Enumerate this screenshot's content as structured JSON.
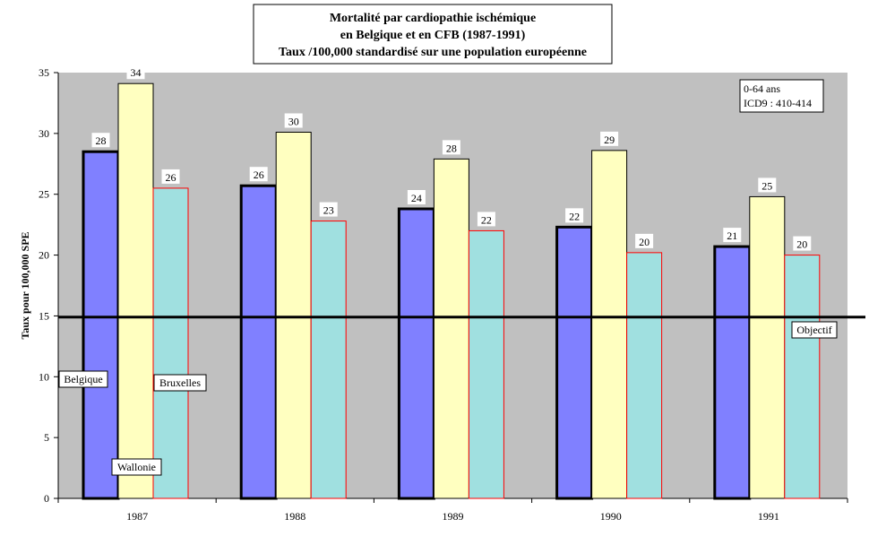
{
  "chart_data": {
    "type": "bar",
    "title_lines": [
      "Mortalité par cardiopathie ischémique",
      "en Belgique et en CFB (1987-1991)",
      "Taux /100,000 standardisé sur une population européenne"
    ],
    "ylabel": "Taux pour 100,000 SPE",
    "xlabel": "",
    "ylim": [
      0,
      35
    ],
    "yticks": [
      0,
      5,
      10,
      15,
      20,
      25,
      30,
      35
    ],
    "categories": [
      "1987",
      "1988",
      "1989",
      "1990",
      "1991"
    ],
    "series": [
      {
        "name": "Belgique",
        "values": [
          28.5,
          25.7,
          23.8,
          22.3,
          20.7
        ],
        "labels": [
          "28",
          "26",
          "24",
          "22",
          "21"
        ],
        "color": "#8080ff"
      },
      {
        "name": "Wallonie",
        "values": [
          34.1,
          30.1,
          27.9,
          28.6,
          24.8
        ],
        "labels": [
          "34",
          "30",
          "28",
          "29",
          "25"
        ],
        "color": "#ffffc0"
      },
      {
        "name": "Bruxelles",
        "values": [
          25.5,
          22.8,
          22.0,
          20.2,
          20.0
        ],
        "labels": [
          "26",
          "23",
          "22",
          "20",
          "20"
        ],
        "color": "#a0e0e0"
      }
    ],
    "objective": {
      "label": "Objectif",
      "value": 14.9
    },
    "annotation_lines": [
      "0-64 ans",
      "ICD9 : 410-414"
    ],
    "grid": false,
    "legend_placement": "inline labels"
  }
}
